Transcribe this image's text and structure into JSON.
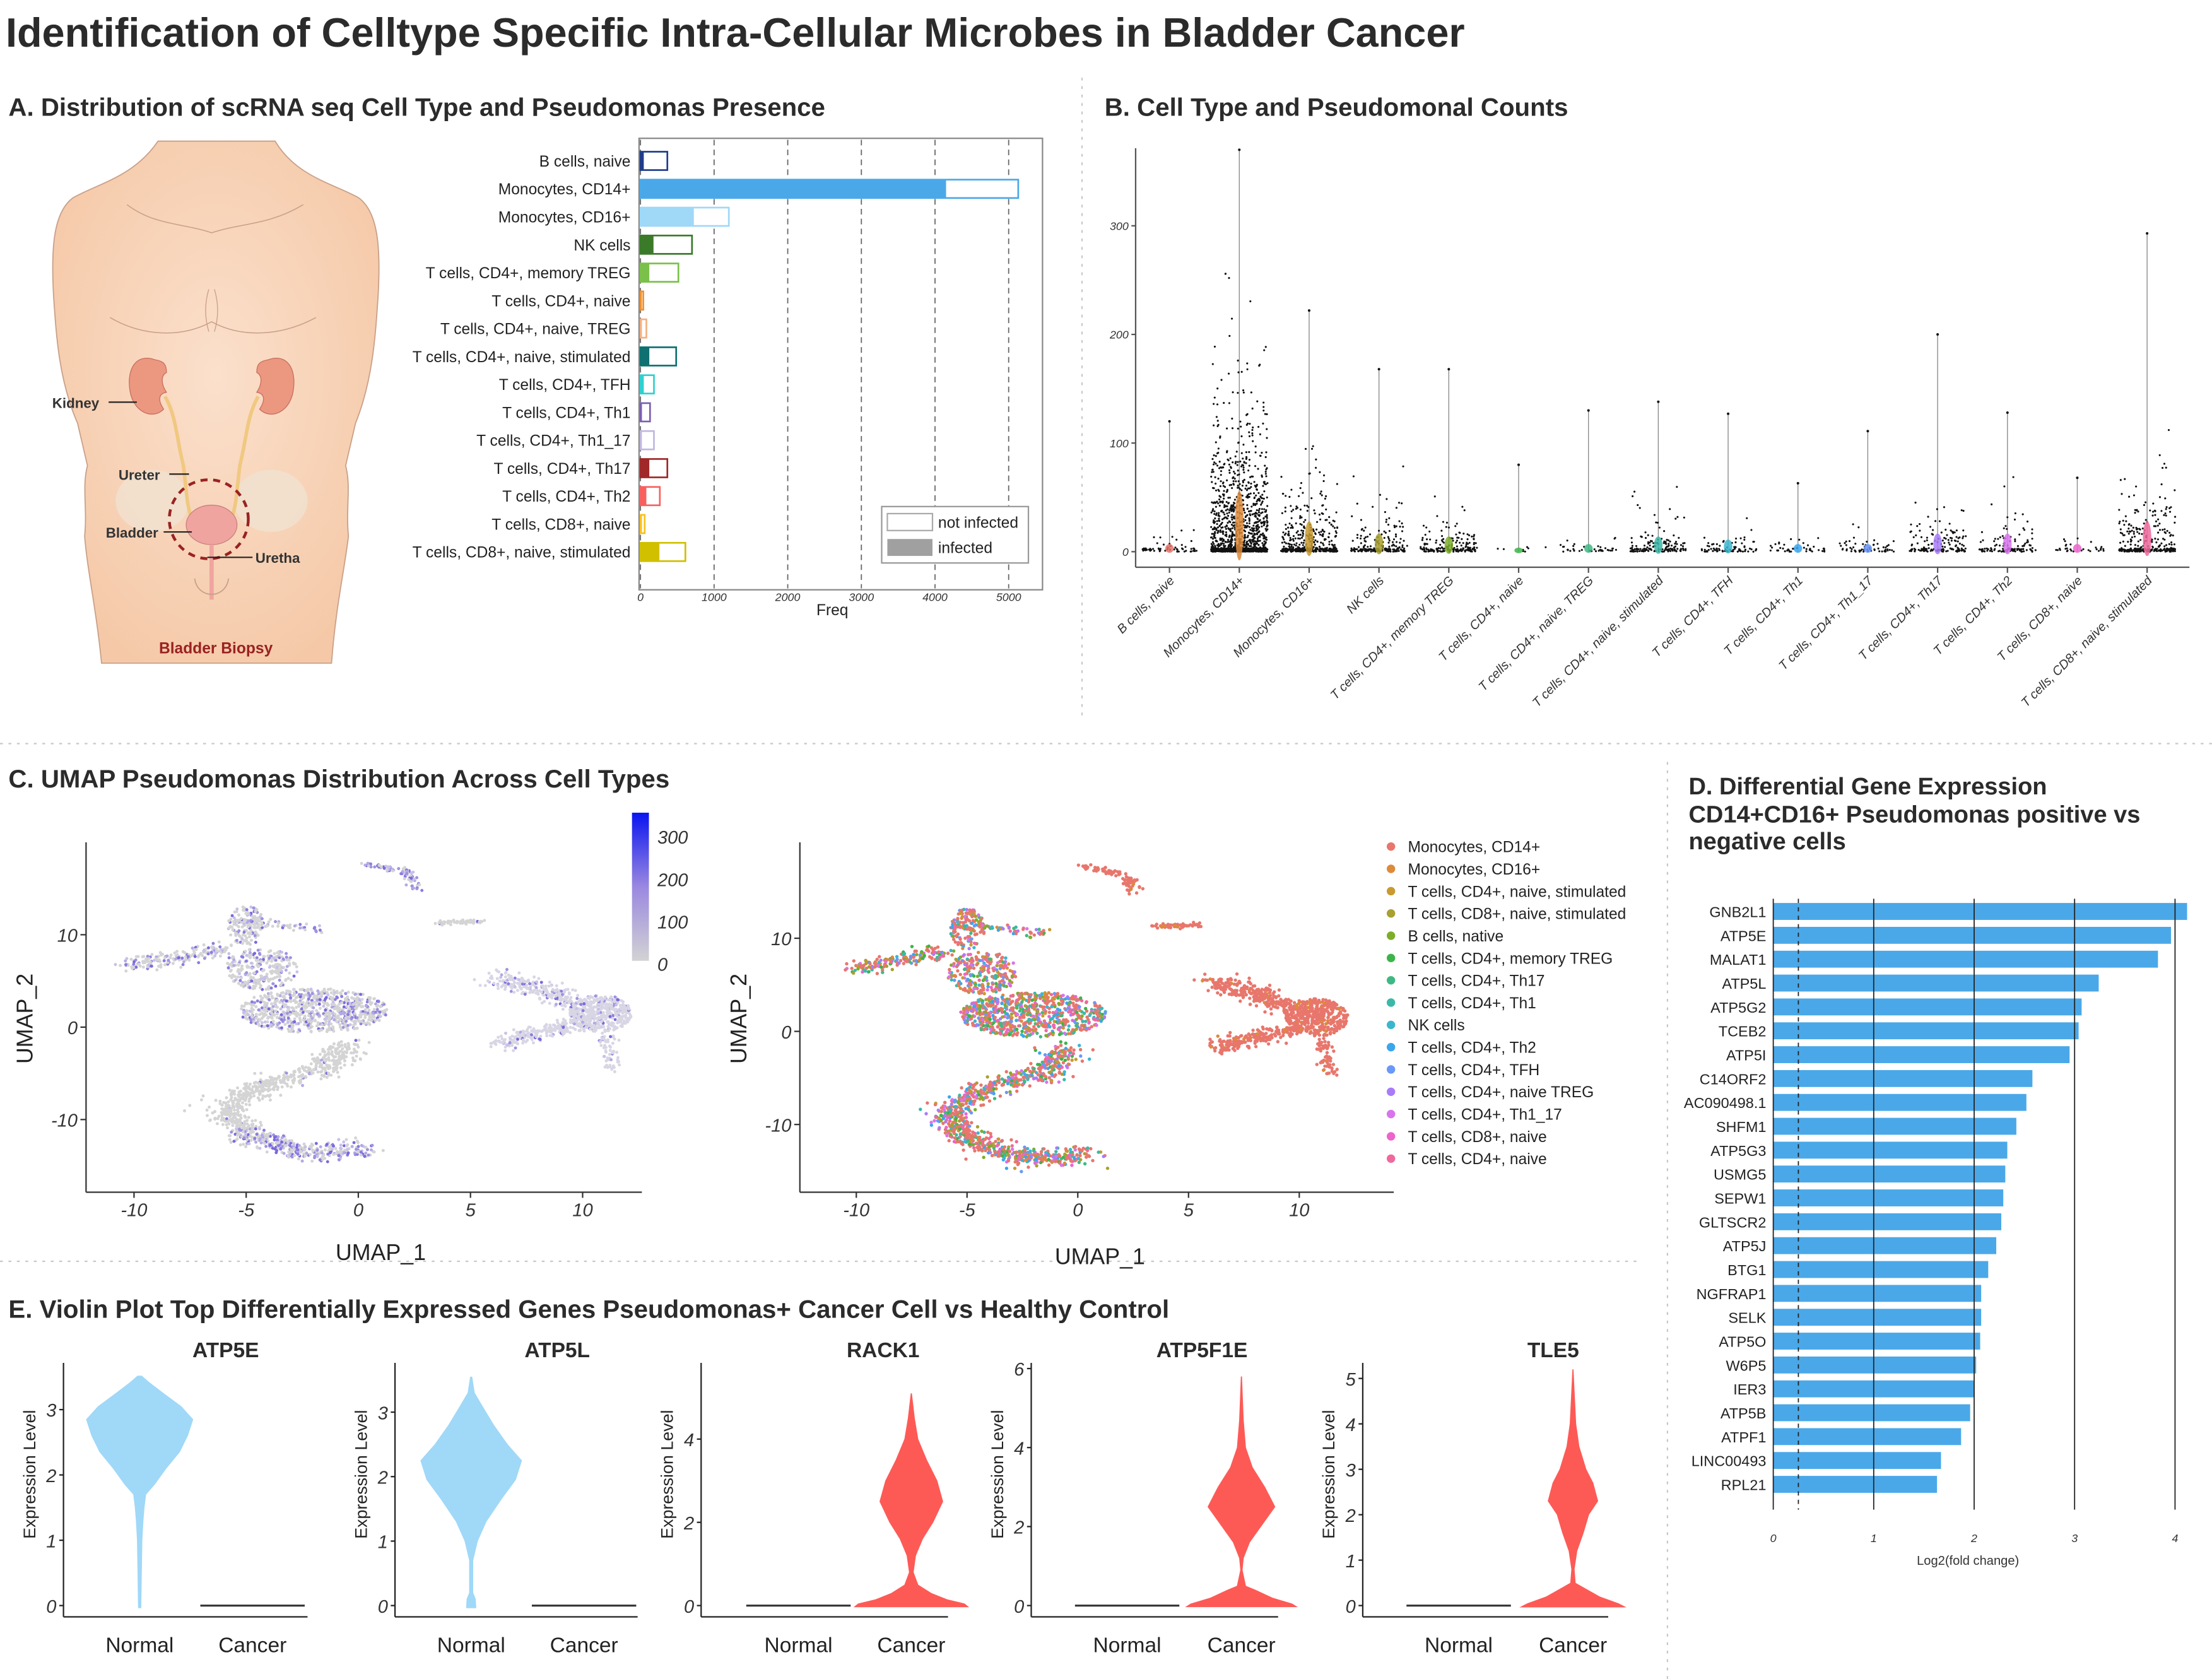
{
  "title": "Identification of Celltype Specific Intra-Cellular Microbes in Bladder Cancer",
  "panels": {
    "A": "A. Distribution of scRNA seq Cell Type and Pseudomonas Presence",
    "B": "B. Cell Type and Pseudomonal Counts",
    "C": "C. UMAP Pseudomonas Distribution Across Cell Types",
    "D": [
      "D. Differential Gene Expression",
      "CD14+CD16+ Pseudomonas positive vs",
      "negative cells"
    ],
    "E": "E. Violin Plot Top Differentially Expressed Genes Pseudomonas+ Cancer Cell vs Healthy Control"
  },
  "anatomy": {
    "kidney": "Kidney",
    "ureter": "Ureter",
    "bladder": "Bladder",
    "uretha": "Uretha",
    "caption": "Bladder Biopsy",
    "caption_color": "#9a2222"
  },
  "chart_data": [
    {
      "id": "A",
      "type": "bar",
      "orientation": "horizontal",
      "stacked": true,
      "categories": [
        "B cells, naive",
        "Monocytes, CD14+",
        "Monocytes, CD16+",
        "NK cells",
        "T cells, CD4+, memory TREG",
        "T cells, CD4+, naive",
        "T cells, CD4+, naive, TREG",
        "T cells, CD4+, naive, stimulated",
        "T cells, CD4+, TFH",
        "T cells, CD4+, Th1",
        "T cells, CD4+, Th1_17",
        "T cells, CD4+, Th17",
        "T cells, CD4+, Th2",
        "T cells, CD8+, naive",
        "T cells, CD8+, naive, stimulated"
      ],
      "series": [
        {
          "name": "infected",
          "values": [
            45,
            4150,
            725,
            177,
            120,
            15,
            15,
            120,
            45,
            20,
            15,
            120,
            80,
            20,
            257
          ]
        },
        {
          "name": "not infected",
          "values": [
            320,
            980,
            475,
            523,
            395,
            15,
            65,
            365,
            138,
            110,
            168,
            245,
            183,
            37,
            353
          ]
        }
      ],
      "colors": [
        "#1f3d8a",
        "#4aa8e8",
        "#a0d8f8",
        "#3a7a28",
        "#7ac04a",
        "#f09030",
        "#f5b080",
        "#0e7070",
        "#30d0d0",
        "#7a60b0",
        "#c0b8e0",
        "#a02828",
        "#f86060",
        "#f8c020",
        "#d0c000"
      ],
      "xlabel": "Freq",
      "xlim": [
        0,
        5300
      ],
      "xticks": [
        "0",
        "1000",
        "2000",
        "3000",
        "4000",
        "5000"
      ],
      "grid": "dashed vertical",
      "legend": {
        "placement": "bottom-right",
        "entries": [
          "not infected",
          "infected"
        ],
        "infected_color": "#a0a0a0"
      }
    },
    {
      "id": "B",
      "type": "scatter",
      "style": "violin with jittered points",
      "categories": [
        "B cells, naive",
        "Monocytes, CD14+",
        "Monocytes, CD16+",
        "NK cells",
        "T cells, CD4+, memory TREG",
        "T cells, CD4+, naive",
        "T cells, CD4+, naive, TREG",
        "T cells, CD4+, naive, stimulated",
        "T cells, CD4+, TFH",
        "T cells, CD4+, Th1",
        "T cells, CD4+, Th1_17",
        "T cells, CD4+, Th17",
        "T cells, CD4+, Th2",
        "T cells, CD8+, naive",
        "T cells, CD8+, naive, stimulated"
      ],
      "max_values": [
        120,
        370,
        222,
        168,
        168,
        80,
        130,
        138,
        127,
        63,
        111,
        200,
        128,
        68,
        293
      ],
      "typical_values": [
        5,
        40,
        20,
        12,
        10,
        2,
        5,
        10,
        8,
        5,
        5,
        12,
        12,
        5,
        20
      ],
      "colors": [
        "#e8766c",
        "#dd8a3a",
        "#c89a30",
        "#a8a030",
        "#7cae2a",
        "#3cb44a",
        "#3fb984",
        "#3bb8a8",
        "#3ab6d0",
        "#3aa6ee",
        "#6a98f8",
        "#a87cf8",
        "#d874ec",
        "#ec64cc",
        "#f0689c"
      ],
      "ylim": [
        0,
        370
      ],
      "yticks": [
        "0",
        "100",
        "200",
        "300"
      ]
    },
    {
      "id": "C-left",
      "type": "scatter",
      "xlabel": "UMAP_1",
      "ylabel": "UMAP_2",
      "xticks": [
        "-10",
        "-5",
        "0",
        "5",
        "10"
      ],
      "yticks": [
        "10",
        "0",
        "-10"
      ],
      "colorbar": {
        "ticks": [
          "300",
          "200",
          "100",
          "0"
        ],
        "low": "#d3d3d3",
        "high": "#0a14f0",
        "range": [
          0,
          350
        ]
      }
    },
    {
      "id": "C-right",
      "type": "scatter",
      "xlabel": "UMAP_1",
      "ylabel": "UMAP_2",
      "xticks": [
        "-10",
        "-5",
        "0",
        "5",
        "10"
      ],
      "yticks": [
        "10",
        "0",
        "-10"
      ],
      "legend": {
        "placement": "right",
        "entries": [
          "Monocytes, CD14+",
          "Monocytes, CD16+",
          "T cells, CD4+, naive, stimulated",
          "T cells, CD8+, naive, stimulated",
          "B cells, native",
          "T cells, CD4+, memory TREG",
          "T cells, CD4+, Th17",
          "T cells, CD4+, Th1",
          "NK cells",
          "T cells, CD4+, Th2",
          "T cells, CD4+, TFH",
          "T cells, CD4+, naive TREG",
          "T cells, CD4+, Th1_17",
          "T cells, CD8+, naive",
          "T cells, CD4+, naive"
        ],
        "colors": [
          "#e8766c",
          "#dd8a3a",
          "#c89a30",
          "#a8a030",
          "#7cae2a",
          "#3cb44a",
          "#3fb984",
          "#3bb8a8",
          "#3ab6d0",
          "#3aa6ee",
          "#6a98f8",
          "#a87cf8",
          "#d874ec",
          "#ec64cc",
          "#f0689c"
        ]
      }
    },
    {
      "id": "D",
      "type": "bar",
      "orientation": "horizontal",
      "categories": [
        "GNB2L1",
        "ATP5E",
        "MALAT1",
        "ATP5L",
        "ATP5G2",
        "TCEB2",
        "ATP5I",
        "C14ORF2",
        "AC090498.1",
        "SHFM1",
        "ATP5G3",
        "USMG5",
        "SEPW1",
        "GLTSCR2",
        "ATP5J",
        "BTG1",
        "NGFRAP1",
        "SELK",
        "ATP5O",
        "W6P5",
        "IER3",
        "ATP5B",
        "ATPF1",
        "LINC00493",
        "RPL21"
      ],
      "values": [
        4.12,
        3.96,
        3.83,
        3.24,
        3.07,
        3.04,
        2.95,
        2.58,
        2.52,
        2.42,
        2.33,
        2.31,
        2.29,
        2.27,
        2.22,
        2.14,
        2.07,
        2.07,
        2.06,
        2.02,
        2.0,
        1.96,
        1.87,
        1.67,
        1.63
      ],
      "color": "#4aa8e8",
      "xlabel": "Log2(fold change)",
      "xticks": [
        "0",
        "1",
        "2",
        "3",
        "4"
      ],
      "xlim": [
        0,
        4.2
      ],
      "threshold_dashed": 0.25
    },
    {
      "id": "E1",
      "type": "violin",
      "title": "ATP5E",
      "ylabel": "Expression Level",
      "categories": [
        "Normal",
        "Cancer"
      ],
      "expressed_group": "Normal",
      "color": "#a0d8f8",
      "yticks": [
        "0",
        "1",
        "2",
        "3"
      ],
      "ylim": [
        0,
        3.6
      ],
      "density_profile": [
        [
          -0.04,
          0.03
        ],
        [
          0.5,
          0.04
        ],
        [
          1.0,
          0.05
        ],
        [
          1.3,
          0.07
        ],
        [
          1.5,
          0.09
        ],
        [
          1.7,
          0.12
        ],
        [
          1.85,
          0.28
        ],
        [
          2.1,
          0.5
        ],
        [
          2.35,
          0.75
        ],
        [
          2.6,
          0.9
        ],
        [
          2.85,
          1.0
        ],
        [
          3.05,
          0.78
        ],
        [
          3.25,
          0.45
        ],
        [
          3.42,
          0.18
        ],
        [
          3.52,
          0.04
        ]
      ]
    },
    {
      "id": "E2",
      "type": "violin",
      "title": "ATP5L",
      "ylabel": "Expression Level",
      "categories": [
        "Normal",
        "Cancer"
      ],
      "expressed_group": "Normal",
      "color": "#a0d8f8",
      "yticks": [
        "0",
        "1",
        "2",
        "3"
      ],
      "ylim": [
        0,
        3.6
      ],
      "density_profile": [
        [
          -0.04,
          0.1
        ],
        [
          0.1,
          0.09
        ],
        [
          0.2,
          0.04
        ],
        [
          0.7,
          0.04
        ],
        [
          1.0,
          0.13
        ],
        [
          1.3,
          0.3
        ],
        [
          1.65,
          0.6
        ],
        [
          1.95,
          0.88
        ],
        [
          2.25,
          1.0
        ],
        [
          2.5,
          0.72
        ],
        [
          2.8,
          0.45
        ],
        [
          3.1,
          0.22
        ],
        [
          3.3,
          0.07
        ],
        [
          3.55,
          0.02
        ]
      ]
    },
    {
      "id": "E3",
      "type": "violin",
      "title": "RACK1",
      "ylabel": "Expression Level",
      "categories": [
        "Normal",
        "Cancer"
      ],
      "expressed_group": "Cancer",
      "color": "#fd5a56",
      "yticks": [
        "0",
        "2",
        "4"
      ],
      "ylim": [
        0,
        5.5
      ],
      "density_profile": [
        [
          -0.04,
          1.0
        ],
        [
          0.05,
          0.92
        ],
        [
          0.15,
          0.62
        ],
        [
          0.3,
          0.35
        ],
        [
          0.5,
          0.12
        ],
        [
          0.8,
          0.04
        ],
        [
          1.2,
          0.08
        ],
        [
          1.6,
          0.2
        ],
        [
          2.0,
          0.38
        ],
        [
          2.5,
          0.55
        ],
        [
          3.0,
          0.45
        ],
        [
          3.5,
          0.27
        ],
        [
          4.0,
          0.12
        ],
        [
          4.5,
          0.06
        ],
        [
          5.1,
          0.01
        ]
      ]
    },
    {
      "id": "E4",
      "type": "violin",
      "title": "ATP5F1E",
      "ylabel": "Expression Level",
      "categories": [
        "Normal",
        "Cancer"
      ],
      "expressed_group": "Cancer",
      "color": "#fd5a56",
      "yticks": [
        "0",
        "2",
        "4",
        "6"
      ],
      "ylim": [
        0,
        6.1
      ],
      "density_profile": [
        [
          -0.04,
          1.0
        ],
        [
          0.05,
          0.9
        ],
        [
          0.2,
          0.55
        ],
        [
          0.4,
          0.25
        ],
        [
          0.5,
          0.08
        ],
        [
          0.9,
          0.02
        ],
        [
          1.2,
          0.04
        ],
        [
          1.6,
          0.15
        ],
        [
          2.0,
          0.35
        ],
        [
          2.5,
          0.6
        ],
        [
          3.0,
          0.42
        ],
        [
          3.5,
          0.2
        ],
        [
          4.0,
          0.08
        ],
        [
          4.7,
          0.04
        ],
        [
          5.8,
          0.01
        ]
      ]
    },
    {
      "id": "E5",
      "type": "violin",
      "title": "TLE5",
      "ylabel": "Expression Level",
      "categories": [
        "Normal",
        "Cancer"
      ],
      "expressed_group": "Cancer",
      "color": "#fd5a56",
      "yticks": [
        "0",
        "1",
        "2",
        "3",
        "4",
        "5"
      ],
      "ylim": [
        0,
        5.3
      ],
      "density_profile": [
        [
          -0.04,
          1.0
        ],
        [
          0.05,
          0.85
        ],
        [
          0.2,
          0.5
        ],
        [
          0.4,
          0.2
        ],
        [
          0.5,
          0.05
        ],
        [
          0.8,
          0.03
        ],
        [
          1.2,
          0.08
        ],
        [
          1.6,
          0.2
        ],
        [
          2.0,
          0.3
        ],
        [
          2.3,
          0.47
        ],
        [
          2.7,
          0.38
        ],
        [
          3.0,
          0.25
        ],
        [
          3.5,
          0.12
        ],
        [
          4.0,
          0.06
        ],
        [
          5.2,
          0.01
        ]
      ]
    }
  ]
}
